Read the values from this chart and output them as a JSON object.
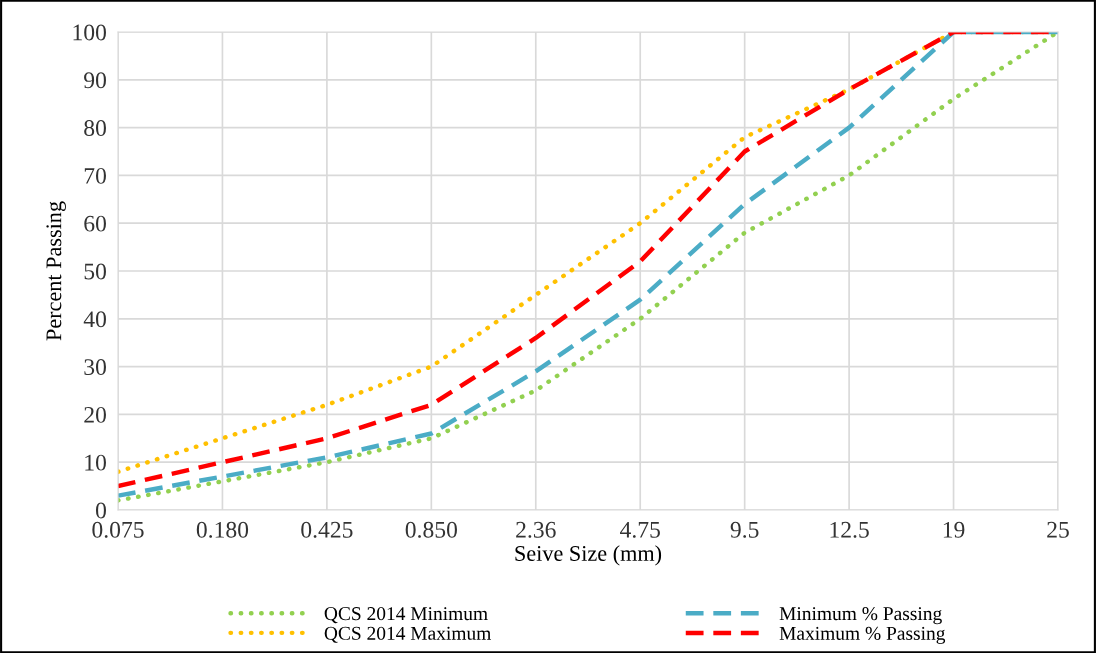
{
  "chart_data": {
    "type": "line",
    "xlabel": "Seive Size (mm)",
    "ylabel": "Percent Passing",
    "categories": [
      "0.075",
      "0.180",
      "0.425",
      "0.850",
      "2.36",
      "4.75",
      "9.5",
      "12.5",
      "19",
      "25"
    ],
    "ylim": [
      0,
      100
    ],
    "yticks": [
      0,
      10,
      20,
      30,
      40,
      50,
      60,
      70,
      80,
      90,
      100
    ],
    "grid": true,
    "legend": "bottom",
    "series": [
      {
        "name": "QCS 2014 Minimum",
        "color": "#92d050",
        "line_style": "dotted",
        "values": [
          2,
          6,
          10,
          15,
          25,
          40,
          58,
          70,
          86,
          100
        ]
      },
      {
        "name": "QCS 2014 Maximum",
        "color": "#ffc000",
        "line_style": "dotted",
        "values": [
          8,
          15,
          22,
          30,
          45,
          60,
          78,
          88,
          100,
          100
        ]
      },
      {
        "name": "Minimum % Passing",
        "color": "#4bacc6",
        "line_style": "dashed",
        "values": [
          3,
          7,
          11,
          16,
          29,
          44,
          64,
          80,
          100,
          100
        ]
      },
      {
        "name": "Maximum % Passing",
        "color": "#ff0000",
        "line_style": "dashed",
        "values": [
          5,
          10,
          15,
          22,
          36,
          52,
          75,
          88,
          100,
          100
        ]
      }
    ]
  }
}
